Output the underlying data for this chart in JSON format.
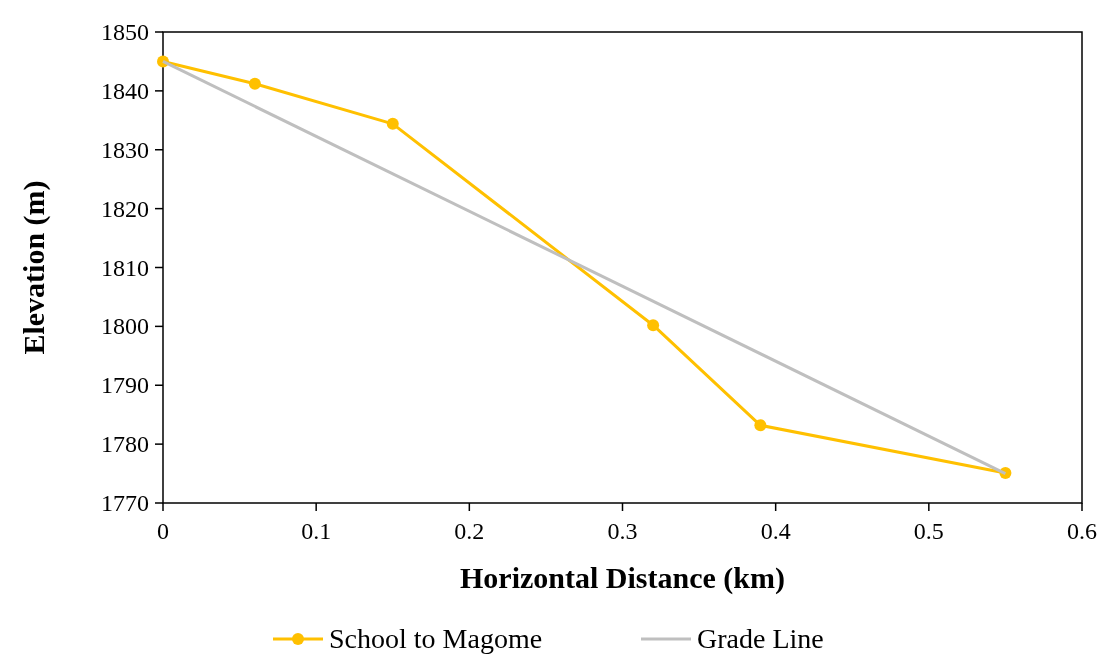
{
  "chart_data": {
    "type": "line",
    "xlabel": "Horizontal Distance (km)",
    "ylabel": "Elevation (m)",
    "xlim": [
      0,
      0.6
    ],
    "xticks": [
      {
        "value": 0,
        "label": "0"
      },
      0.1,
      0.2,
      0.3,
      0.4,
      0.5,
      0.6
    ],
    "ylim": [
      1770,
      1850
    ],
    "yticks": [
      1770,
      1780,
      1790,
      1800,
      1810,
      1820,
      1830,
      1840,
      1850
    ],
    "legend": "bottom",
    "grid": false,
    "series": [
      {
        "name": "School to Magome",
        "color": "#ffc000",
        "marker": "circle",
        "x": [
          0,
          0.06,
          0.15,
          0.32,
          0.39,
          0.55
        ],
        "values": [
          1845,
          1841.2,
          1834.4,
          1800.2,
          1783.2,
          1775.1
        ]
      },
      {
        "name": "Grade Line",
        "color": "#bfbfbf",
        "marker": "none",
        "x": [
          0,
          0.55
        ],
        "values": [
          1845,
          1775
        ]
      }
    ]
  }
}
